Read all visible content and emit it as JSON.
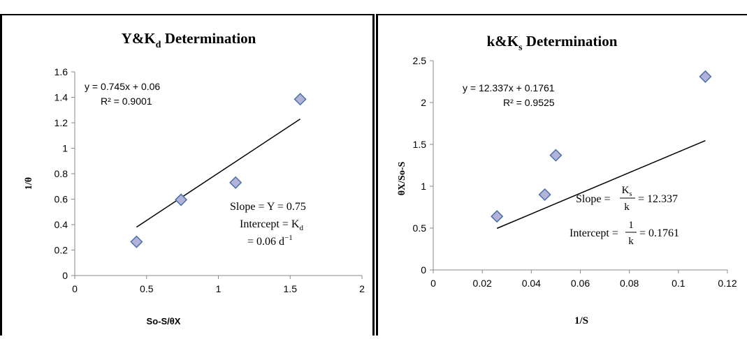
{
  "chart_data": [
    {
      "type": "scatter",
      "title_main": "Y&K",
      "title_sub": "d",
      "title_tail": " Determination",
      "xlabel": "So-S/θX",
      "ylabel": "1/θ",
      "xlim": [
        0,
        2
      ],
      "ylim": [
        0,
        1.6
      ],
      "xticks": [
        "0",
        "0.5",
        "1",
        "1.5",
        "2"
      ],
      "yticks": [
        "0",
        "0.2",
        "0.4",
        "0.6",
        "0.8",
        "1",
        "1.2",
        "1.4",
        "1.6"
      ],
      "points": [
        {
          "x": 0.43,
          "y": 0.265
        },
        {
          "x": 0.74,
          "y": 0.595
        },
        {
          "x": 1.12,
          "y": 0.73
        },
        {
          "x": 1.57,
          "y": 1.385
        }
      ],
      "trendline": {
        "slope": 0.745,
        "intercept": 0.06,
        "x_start": 0.43,
        "x_end": 1.57
      },
      "equation": "y = 0.745x + 0.06",
      "r2": "R² = 0.9001",
      "annotations": {
        "slope_line": "Slope = Y = 0.75",
        "intercept_prefix": "Intercept = K",
        "intercept_sub": "d",
        "intercept_value": "= 0.06 d",
        "intercept_sup": "−1"
      },
      "grid": false,
      "marker_fill": "#b3b3d9",
      "marker_stroke": "#4a6fa8"
    },
    {
      "type": "scatter",
      "title_main": "k&K",
      "title_sub": "s",
      "title_tail": " Determination",
      "xlabel": "1/S",
      "ylabel": "θX/So-S",
      "xlim": [
        0,
        0.12
      ],
      "ylim": [
        0,
        2.5
      ],
      "xticks": [
        "0",
        "0.02",
        "0.04",
        "0.06",
        "0.08",
        "0.1",
        "0.12"
      ],
      "yticks": [
        "0",
        "0.5",
        "1",
        "1.5",
        "2",
        "2.5"
      ],
      "points": [
        {
          "x": 0.026,
          "y": 0.64
        },
        {
          "x": 0.0455,
          "y": 0.9
        },
        {
          "x": 0.05,
          "y": 1.37
        },
        {
          "x": 0.111,
          "y": 2.31
        }
      ],
      "trendline": {
        "slope": 12.337,
        "intercept": 0.1761,
        "x_start": 0.026,
        "x_end": 0.111
      },
      "equation": "y = 12.337x + 0.1761",
      "r2": "R² = 0.9525",
      "annotations": {
        "slope_prefix": "Slope =",
        "slope_num": "K",
        "slope_num_sub": "s",
        "slope_den": "k",
        "slope_value": "= 12.337",
        "intercept_prefix": "Intercept =",
        "intercept_num": "1",
        "intercept_den": "k",
        "intercept_value": "= 0.1761"
      },
      "grid": false,
      "marker_fill": "#b3b3d9",
      "marker_stroke": "#4a6fa8"
    }
  ]
}
